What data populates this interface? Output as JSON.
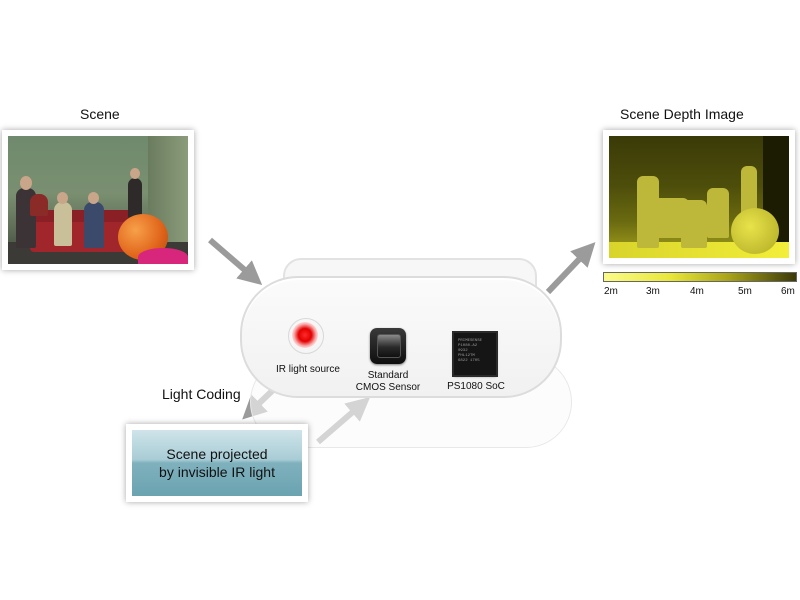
{
  "scene": {
    "title": "Scene"
  },
  "depth": {
    "title": "Scene Depth Image",
    "scale_ticks": [
      "2m",
      "3m",
      "4m",
      "5m",
      "6m"
    ],
    "colormap": [
      "#fbfb8a",
      "#e8e63a",
      "#a8a31a",
      "#3c3a08"
    ]
  },
  "device": {
    "ir_label": "IR light source",
    "cmos_label": [
      "Standard",
      "CMOS Sensor"
    ],
    "soc_label": "PS1080 SoC",
    "soc_chip_text": [
      "PRIMESENSE",
      "P1080-A2",
      "0932",
      "PHL12TM",
      "6822 1705"
    ]
  },
  "light_coding": {
    "label": "Light Coding"
  },
  "projection": {
    "lines": [
      "Scene projected",
      "by invisible IR light"
    ]
  },
  "colors": {
    "arrow": "#9b9b9b",
    "ir_red": "#e10000",
    "projection_teal": "#7fb1bd"
  }
}
